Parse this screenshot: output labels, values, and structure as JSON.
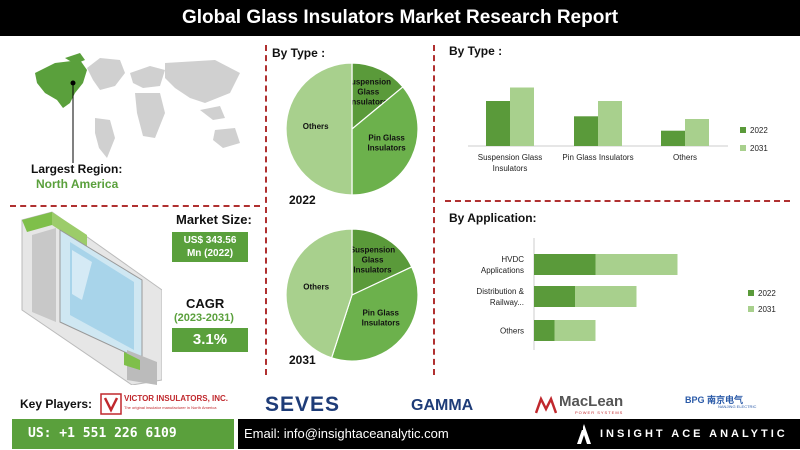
{
  "title": "Global Glass Insulators Market Research Report",
  "region": {
    "label": "Largest Region:",
    "value": "North America"
  },
  "market_size": {
    "label": "Market Size:",
    "value_line1": "US$ 343.56",
    "value_line2": "Mn (2022)"
  },
  "cagr": {
    "label": "CAGR",
    "period": "(2023-2031)",
    "value": "3.1%"
  },
  "key_players": {
    "label": "Key Players:",
    "logos": [
      "VICTOR INSULATORS, INC.",
      "SEVES",
      "GAMMA",
      "MacLean",
      "BPG 南京电气"
    ],
    "victor_tagline": "The original insulator manufacturer in North America",
    "maclean_tagline": "POWER SYSTEMS",
    "nanjing_tagline": "NANJING ELECTRIC"
  },
  "contact": {
    "phone": "US: +1 551 226 6109",
    "email": "Email: info@insightaceanalytic.com",
    "brand": "INSIGHT ACE ANALYTIC"
  },
  "colors": {
    "dark_green": "#5a9a3a",
    "light_green": "#a8d08d",
    "brand_green": "#5aa03c",
    "divider": "#b03030"
  },
  "chart_data": [
    {
      "type": "pie",
      "title": "By Type :",
      "year": "2022",
      "slices": [
        {
          "label": "Suspension Glass Insulators",
          "value": 14
        },
        {
          "label": "Pin Glass Insulators",
          "value": 36
        },
        {
          "label": "Others",
          "value": 50
        }
      ]
    },
    {
      "type": "pie",
      "year": "2031",
      "slices": [
        {
          "label": "Suspension Glass Insulators",
          "value": 18
        },
        {
          "label": "Pin Glass Insulators",
          "value": 37
        },
        {
          "label": "Others",
          "value": 45
        }
      ]
    },
    {
      "type": "bar",
      "title": "By Type :",
      "categories": [
        "Suspension Glass Insulators",
        "Pin Glass Insulators",
        "Others"
      ],
      "series": [
        {
          "name": "2022",
          "values": [
            50,
            33,
            17
          ]
        },
        {
          "name": "2031",
          "values": [
            65,
            50,
            30
          ]
        }
      ]
    },
    {
      "type": "bar",
      "orientation": "horizontal",
      "stacked": true,
      "title": "By Application:",
      "categories": [
        "HVDC Applications",
        "Distribution & Railway...",
        "Others"
      ],
      "series": [
        {
          "name": "2022",
          "values": [
            30,
            20,
            10
          ]
        },
        {
          "name": "2031",
          "values": [
            40,
            30,
            20
          ]
        }
      ]
    }
  ]
}
